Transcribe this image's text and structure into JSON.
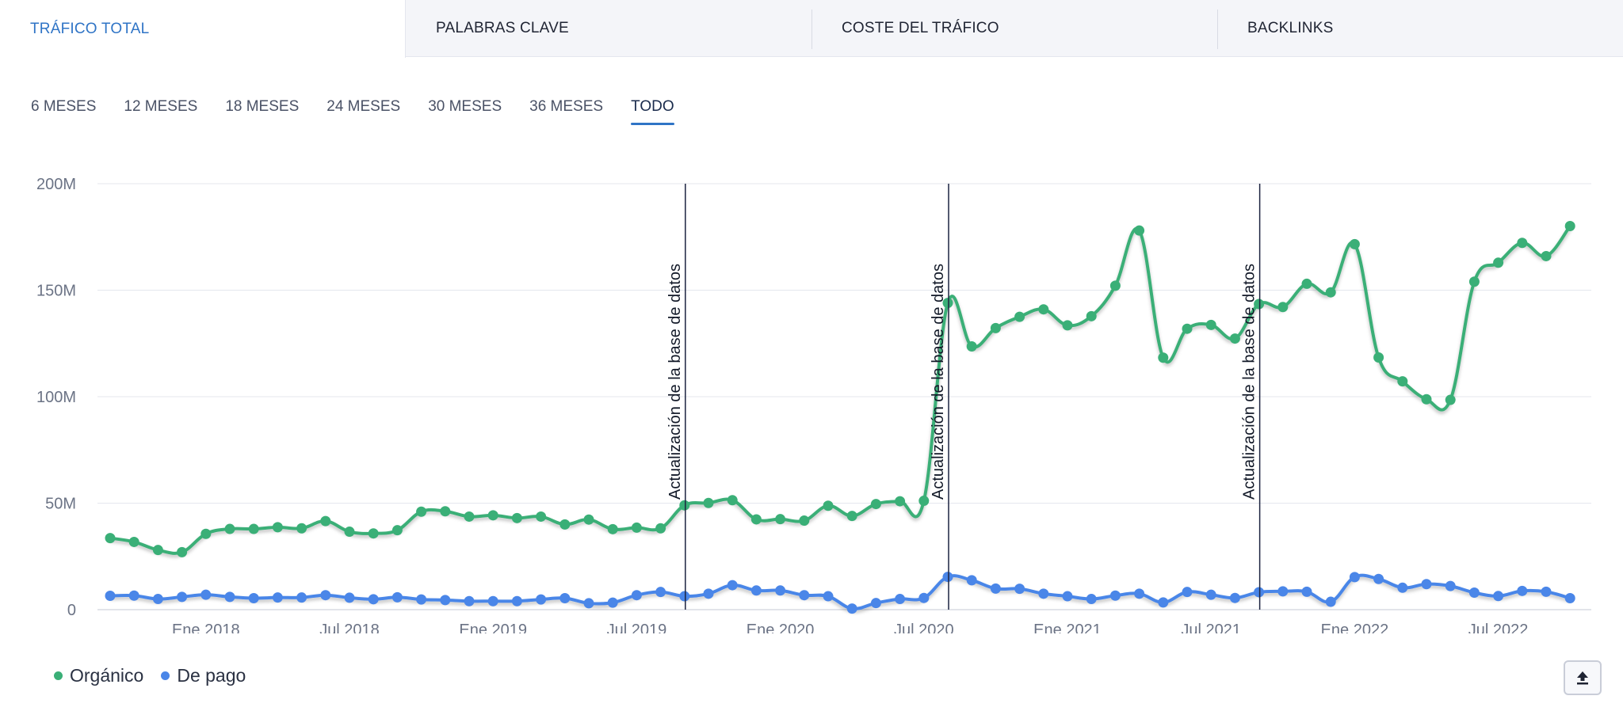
{
  "tabs": [
    {
      "label": "TRÁFICO TOTAL",
      "active": true
    },
    {
      "label": "PALABRAS CLAVE",
      "active": false
    },
    {
      "label": "COSTE DEL TRÁFICO",
      "active": false
    },
    {
      "label": "BACKLINKS",
      "active": false
    }
  ],
  "periods": [
    {
      "label": "6 MESES",
      "active": false
    },
    {
      "label": "12 MESES",
      "active": false
    },
    {
      "label": "18 MESES",
      "active": false
    },
    {
      "label": "24 MESES",
      "active": false
    },
    {
      "label": "30 MESES",
      "active": false
    },
    {
      "label": "36 MESES",
      "active": false
    },
    {
      "label": "TODO",
      "active": true
    }
  ],
  "legend": [
    {
      "label": "Orgánico",
      "color": "#3aaf77"
    },
    {
      "label": "De pago",
      "color": "#4a86e8"
    }
  ],
  "export_icon": "upload-icon",
  "chart_data": {
    "type": "line",
    "ylim": [
      0,
      200
    ],
    "y_ticks": [
      {
        "value": 0,
        "label": "0"
      },
      {
        "value": 50,
        "label": "50M"
      },
      {
        "value": 100,
        "label": "100M"
      },
      {
        "value": 150,
        "label": "150M"
      },
      {
        "value": 200,
        "label": "200M"
      }
    ],
    "x_ticks": [
      {
        "label": "Ene 2018",
        "index": 4
      },
      {
        "label": "Jul 2018",
        "index": 10
      },
      {
        "label": "Ene 2019",
        "index": 16
      },
      {
        "label": "Jul 2019",
        "index": 22
      },
      {
        "label": "Ene 2020",
        "index": 28
      },
      {
        "label": "Jul 2020",
        "index": 34
      },
      {
        "label": "Ene 2021",
        "index": 40
      },
      {
        "label": "Jul 2021",
        "index": 46
      },
      {
        "label": "Ene 2022",
        "index": 52
      },
      {
        "label": "Jul 2022",
        "index": 58
      }
    ],
    "annotations": [
      {
        "index": 24,
        "label": "Actualización de la base de datos"
      },
      {
        "index": 35,
        "label": "Actualización de la base de datos"
      },
      {
        "index": 48,
        "label": "Actualización de la base de datos"
      }
    ],
    "grid": true,
    "legend_position": "bottom-left",
    "series": [
      {
        "name": "Orgánico",
        "color": "#3aaf77",
        "values": [
          33.6,
          31.8,
          28,
          27,
          35.6,
          37.9,
          37.9,
          38.7,
          38.2,
          41.6,
          36.6,
          35.8,
          37.3,
          46,
          46.2,
          43.7,
          44.3,
          43,
          43.7,
          40,
          42.3,
          37.8,
          38.5,
          38.2,
          49,
          50.1,
          51.4,
          42.4,
          42.5,
          41.8,
          48.8,
          44,
          49.6,
          50.9,
          51.1,
          144,
          123.6,
          132.2,
          137.5,
          141,
          133.5,
          137.8,
          152.1,
          178,
          118.3,
          131.9,
          133.7,
          127.3,
          143.5,
          142.1,
          153,
          149,
          171.6,
          118.4,
          107.2,
          98.8,
          98.5,
          154,
          162.9,
          172.2,
          166,
          180.1
        ]
      },
      {
        "name": "De pago",
        "color": "#4a86e8",
        "values": [
          6.5,
          6.6,
          5,
          6,
          7,
          6,
          5.4,
          5.7,
          5.7,
          6.8,
          5.6,
          4.9,
          5.8,
          4.8,
          4.5,
          4,
          4,
          4,
          4.8,
          5.4,
          3,
          3.3,
          6.8,
          8.3,
          6.3,
          7.5,
          11.5,
          9,
          9,
          6.8,
          6.3,
          0.5,
          3.1,
          5,
          5.5,
          15.4,
          13.8,
          9.9,
          9.8,
          7.5,
          6.3,
          5,
          6.6,
          7.5,
          3.4,
          8.3,
          7,
          5.5,
          8.2,
          8.6,
          8.4,
          3.7,
          15.3,
          14.4,
          10.3,
          12,
          11.1,
          8,
          6.4,
          8.8,
          8.4,
          5.4
        ]
      }
    ]
  }
}
